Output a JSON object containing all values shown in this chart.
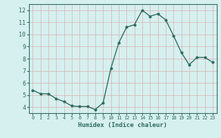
{
  "x": [
    0,
    1,
    2,
    3,
    4,
    5,
    6,
    7,
    8,
    9,
    10,
    11,
    12,
    13,
    14,
    15,
    16,
    17,
    18,
    19,
    20,
    21,
    22,
    23
  ],
  "y": [
    5.4,
    5.1,
    5.1,
    4.7,
    4.45,
    4.1,
    4.05,
    4.05,
    3.8,
    4.35,
    7.2,
    9.3,
    10.6,
    10.8,
    12.0,
    11.5,
    11.7,
    11.2,
    9.9,
    8.5,
    7.5,
    8.1,
    8.1,
    7.7
  ],
  "line_color": "#2e6b5e",
  "marker_color": "#2e6b5e",
  "bg_color": "#d6f0ef",
  "grid_color": "#d8b8b8",
  "xlabel": "Humidex (Indice chaleur)",
  "xlabel_color": "#2e6b5e",
  "tick_color": "#2e6b5e",
  "axis_color": "#2e6b5e",
  "ylim": [
    3.5,
    12.5
  ],
  "xlim": [
    -0.5,
    23.5
  ],
  "yticks": [
    4,
    5,
    6,
    7,
    8,
    9,
    10,
    11,
    12
  ],
  "xticks": [
    0,
    1,
    2,
    3,
    4,
    5,
    6,
    7,
    8,
    9,
    10,
    11,
    12,
    13,
    14,
    15,
    16,
    17,
    18,
    19,
    20,
    21,
    22,
    23
  ],
  "xlabel_fontsize": 6.5,
  "tick_fontsize_x": 5.0,
  "tick_fontsize_y": 6.0,
  "linewidth": 1.0,
  "markersize": 2.0
}
